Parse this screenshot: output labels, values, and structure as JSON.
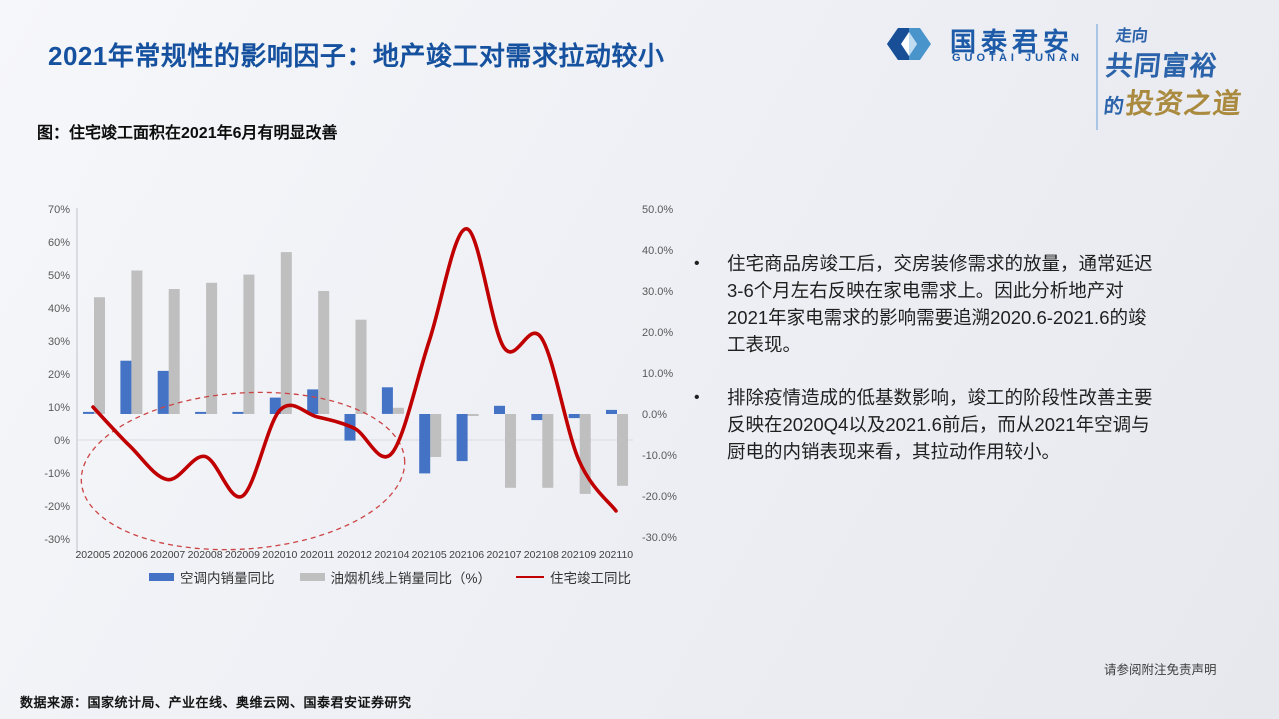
{
  "slide": {
    "title": "2021年常规性的影响因子：地产竣工对需求拉动较小",
    "figure_caption": "图：住宅竣工面积在2021年6月有明显改善",
    "bullets": [
      "住宅商品房竣工后，交房装修需求的放量，通常延迟3-6个月左右反映在家电需求上。因此分析地产对2021年家电需求的影响需要追溯2020.6-2021.6的竣工表现。",
      "排除疫情造成的低基数影响，竣工的阶段性改善主要反映在2020Q4以及2021.6前后，而从2021年空调与厨电的内销表现来看，其拉动作用较小。"
    ],
    "source_note": "数据来源：国家统计局、产业在线、奥维云网、国泰君安证券研究",
    "disclaimer_note": "请参阅附注免责声明"
  },
  "brand": {
    "logo_cn": "国泰君安",
    "logo_en": "GUOTAI JUNAN",
    "slogan_line1": "走向",
    "slogan_line2": "共同富裕",
    "slogan_line3_prefix": "的",
    "slogan_line3_gold": "投资之道",
    "colors": {
      "logo_blue": "#1d5aa8",
      "slogan_blue": "#2b63ab",
      "slogan_gold": "#aa8a3e"
    }
  },
  "chart_data": {
    "type": "bar",
    "combo": "dual-axis bar + smooth line",
    "categories": [
      "202005",
      "202006",
      "202007",
      "202008",
      "202009",
      "202010",
      "202011",
      "202012",
      "202104",
      "202105",
      "202106",
      "202107",
      "202108",
      "202109",
      "202110"
    ],
    "series": [
      {
        "name": "空调内销量同比",
        "type": "bar",
        "axis": "right",
        "color": "#4472c4",
        "values": [
          0.5,
          13,
          10.5,
          0.5,
          0.5,
          4,
          6,
          -6.5,
          6.5,
          -14.5,
          -11.5,
          2,
          -1.5,
          -1,
          1
        ]
      },
      {
        "name": "油烟机线上销量同比（%）",
        "type": "bar",
        "axis": "right",
        "color": "#bfbfbf",
        "values": [
          28.5,
          35,
          30.5,
          32,
          34,
          39.5,
          30,
          23,
          1.5,
          -10.5,
          -0.5,
          -18,
          -18,
          -19.5,
          -17.5
        ]
      },
      {
        "name": "住宅竣工同比",
        "type": "line",
        "axis": "left",
        "color": "#c00000",
        "values": [
          10,
          -2,
          -12,
          -5,
          -17,
          9,
          7,
          3.5,
          -4,
          30,
          64,
          28,
          31,
          -6,
          -21.5
        ]
      }
    ],
    "left_axis": {
      "min": -30,
      "max": 70,
      "ticks": [
        "70%",
        "60%",
        "50%",
        "40%",
        "30%",
        "20%",
        "10%",
        "0%",
        "-10%",
        "-20%",
        "-30%"
      ]
    },
    "right_axis": {
      "min": -30,
      "max": 50,
      "ticks": [
        "50.0%",
        "40.0%",
        "30.0%",
        "20.0%",
        "10.0%",
        "0.0%",
        "-10.0%",
        "-20.0%",
        "-30.0%"
      ]
    },
    "grid": "single horizontal line at left-axis 0%",
    "legend_position": "bottom",
    "annotation_ellipse": {
      "style": "dashed",
      "color": "#cc4444",
      "note": "circles the 2020.5-2021.4 portion of the completion line"
    }
  }
}
